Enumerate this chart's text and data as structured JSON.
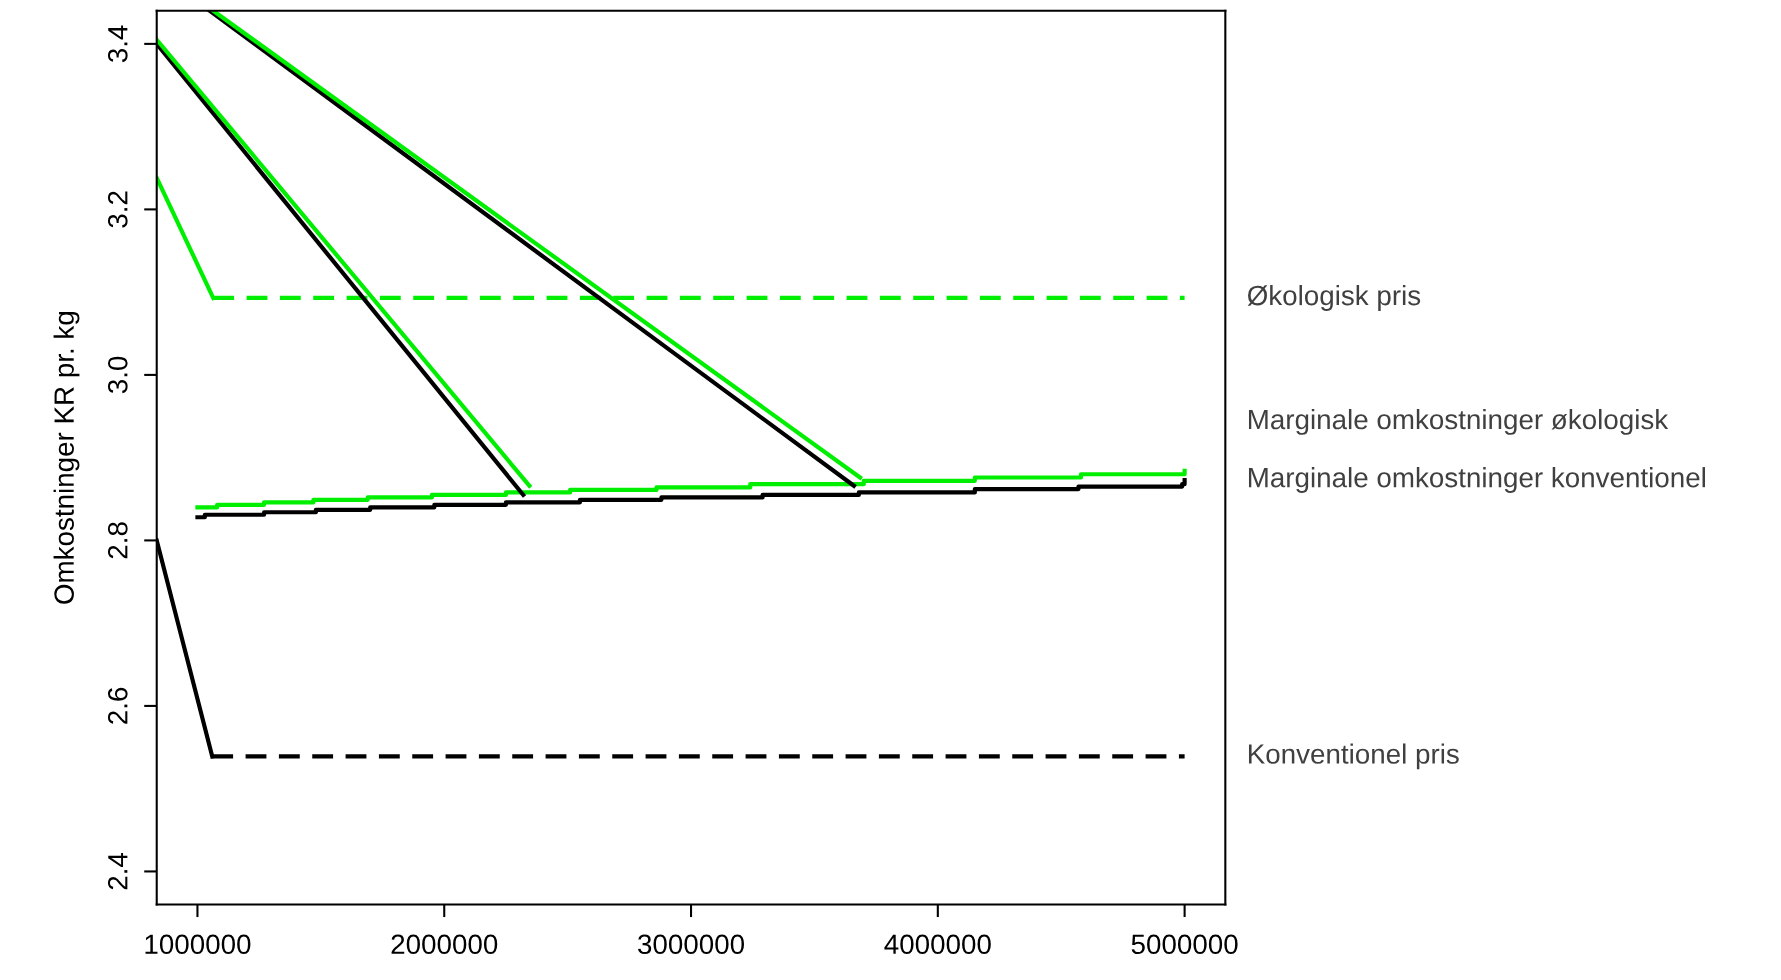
{
  "chart_data": {
    "type": "line",
    "ylabel": "Omkostninger KR pr. kg",
    "xlim": [
      835000,
      5165000
    ],
    "ylim": [
      2.36,
      3.44
    ],
    "xticks": [
      1000000,
      2000000,
      3000000,
      4000000,
      5000000
    ],
    "yticks": [
      2.4,
      2.6,
      2.8,
      {
        "value": 3.0,
        "label": "3.0"
      },
      3.2,
      3.4
    ],
    "grid": false,
    "marker": "none",
    "series": [
      {
        "type": "step",
        "name": "Marginale omkostninger konventionel",
        "color": "#000000",
        "line_style": "solid",
        "x": [
          1000000,
          1030000,
          1270000,
          1480000,
          1700000,
          1960000,
          2250000,
          2550000,
          2880000,
          3290000,
          3680000,
          4150000,
          4570000,
          4990000,
          5000000
        ],
        "values": [
          2.828,
          2.831,
          2.834,
          2.837,
          2.84,
          2.843,
          2.846,
          2.849,
          2.852,
          2.855,
          2.858,
          2.862,
          2.865,
          2.868,
          2.873
        ]
      },
      {
        "type": "step",
        "name": "Marginale omkostninger økologisk",
        "color": "#00ee00",
        "line_style": "solid",
        "x": [
          1000000,
          1080000,
          1270000,
          1470000,
          1690000,
          1950000,
          2250000,
          2510000,
          2860000,
          3240000,
          3700000,
          4150000,
          4580000,
          5000000
        ],
        "values": [
          2.84,
          2.843,
          2.846,
          2.849,
          2.852,
          2.855,
          2.858,
          2.861,
          2.864,
          2.868,
          2.872,
          2.876,
          2.88,
          2.884
        ]
      },
      {
        "color": "#000000",
        "line_style": "solid",
        "x": [
          835000,
          1060000
        ],
        "values": [
          2.8,
          2.539
        ]
      },
      {
        "name": "Konventionel pris",
        "color": "#000000",
        "line_style": "dashed",
        "x": [
          1060000,
          5000000
        ],
        "values": [
          2.539,
          2.539
        ]
      },
      {
        "color": "#00ee00",
        "line_style": "solid",
        "x": [
          835000,
          1064000
        ],
        "values": [
          3.238,
          3.093
        ]
      },
      {
        "name": "Økologisk pris",
        "color": "#00ee00",
        "line_style": "dashed",
        "x": [
          1064000,
          5000000
        ],
        "values": [
          3.093,
          3.093
        ]
      },
      {
        "color": "#000000",
        "line_style": "solid",
        "x": [
          835000,
          2320000
        ],
        "values": [
          3.4,
          2.855
        ]
      },
      {
        "color": "#00ee00",
        "line_style": "solid",
        "x": [
          835000,
          2345000
        ],
        "values": [
          3.405,
          2.866
        ]
      },
      {
        "color": "#000000",
        "line_style": "solid",
        "x": [
          1050000,
          3660000
        ],
        "values": [
          3.44,
          2.866
        ]
      },
      {
        "color": "#00ee00",
        "line_style": "solid",
        "x": [
          1064000,
          3685000
        ],
        "values": [
          3.44,
          2.876
        ]
      }
    ]
  }
}
